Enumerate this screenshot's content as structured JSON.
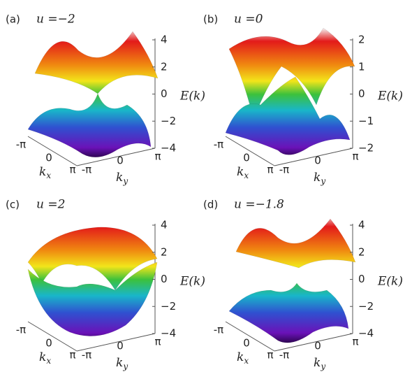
{
  "panels": [
    {
      "label": "(a)",
      "param": "u =−2",
      "zlim": [
        -4,
        4
      ],
      "zticks": [
        4,
        {
          "value": 2,
          "label": "2"
        },
        0,
        {
          "value": -2,
          "label": "−2"
        },
        {
          "value": -4,
          "label": "−4"
        }
      ],
      "z_label": "E(k)",
      "kx_ticks": [
        "-π",
        "0",
        "π"
      ],
      "ky_ticks": [
        "-π",
        "0",
        "π"
      ],
      "kx_label": {
        "base": "k",
        "sub": "x"
      },
      "ky_label": {
        "base": "k",
        "sub": "y"
      }
    },
    {
      "label": "(b)",
      "param": "u =0",
      "zlim": [
        -2,
        2
      ],
      "zticks": [
        2,
        1,
        0,
        {
          "value": -1,
          "label": "−1"
        },
        {
          "value": -2,
          "label": "−2"
        }
      ],
      "z_label": "E(k)",
      "kx_ticks": [
        "-π",
        "0",
        "π"
      ],
      "ky_ticks": [
        "-π",
        "0",
        "π"
      ],
      "kx_label": {
        "base": "k",
        "sub": "x"
      },
      "ky_label": {
        "base": "k",
        "sub": "y"
      }
    },
    {
      "label": "(c)",
      "param": "u =2",
      "zlim": [
        -4,
        4
      ],
      "zticks": [
        4,
        2,
        0,
        {
          "value": -2,
          "label": "−2"
        },
        {
          "value": -4,
          "label": "−4"
        }
      ],
      "z_label": "E(k)",
      "kx_ticks": [
        "-π",
        "0",
        "π"
      ],
      "ky_ticks": [
        "-π",
        "0",
        "π"
      ],
      "kx_label": {
        "base": "k",
        "sub": "x"
      },
      "ky_label": {
        "base": "k",
        "sub": "y"
      }
    },
    {
      "label": "(d)",
      "param": "u =−1.8",
      "zlim": [
        -4,
        4
      ],
      "zticks": [
        4,
        2,
        0,
        {
          "value": -2,
          "label": "−2"
        },
        {
          "value": -4,
          "label": "−4"
        }
      ],
      "z_label": "E(k)",
      "kx_ticks": [
        "-π",
        "0",
        "π"
      ],
      "ky_ticks": [
        "-π",
        "0",
        "π"
      ],
      "kx_label": {
        "base": "k",
        "sub": "x"
      },
      "ky_label": {
        "base": "k",
        "sub": "y"
      }
    }
  ]
}
